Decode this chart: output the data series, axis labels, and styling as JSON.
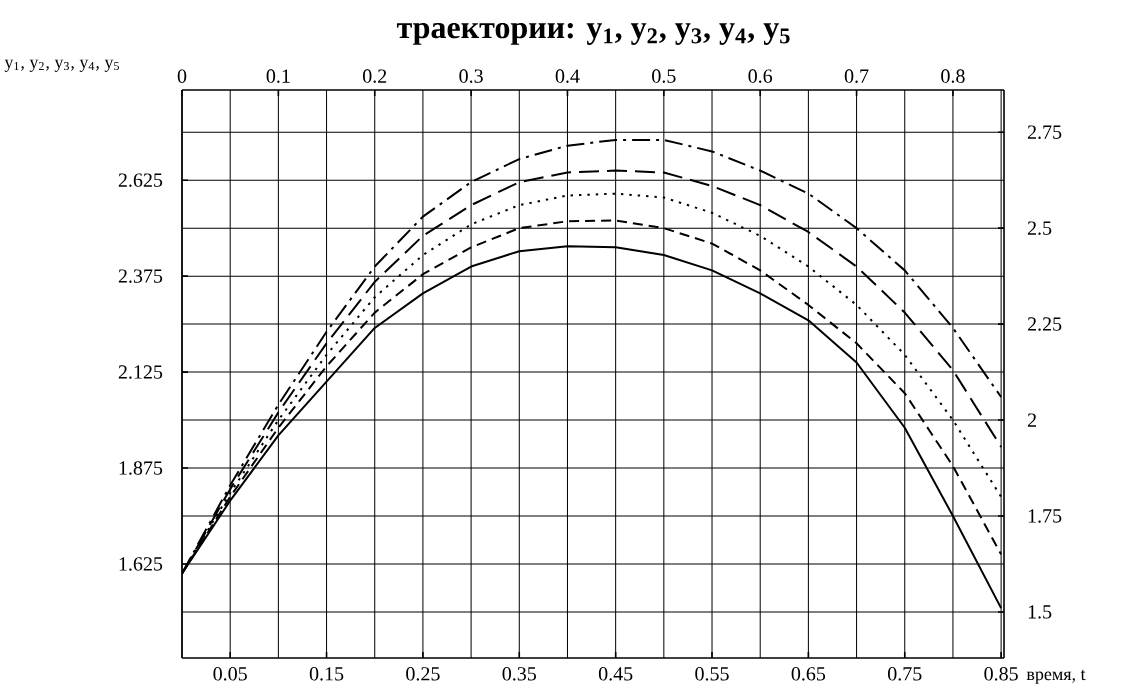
{
  "chart_data": {
    "type": "line",
    "title": "траектории: y$_{1}$, y$_{2}$, y$_{3}$, y$_{4}$, y$_{5}$",
    "ylabel": "y$_{1}$, y$_{2}$, y$_{3}$, y$_{4}$, y$_{5}$",
    "xlabel": "время, t",
    "x": [
      0,
      0.05,
      0.1,
      0.15,
      0.2,
      0.25,
      0.3,
      0.35,
      0.4,
      0.45,
      0.5,
      0.55,
      0.6,
      0.65,
      0.7,
      0.75,
      0.8,
      0.85
    ],
    "series": [
      {
        "color": "#000000",
        "line_style": "solid",
        "values": [
          1.6,
          1.79,
          1.96,
          2.1,
          2.24,
          2.33,
          2.4,
          2.44,
          2.453,
          2.45,
          2.43,
          2.39,
          2.33,
          2.26,
          2.15,
          1.98,
          1.75,
          1.51
        ]
      },
      {
        "color": "#000000",
        "line_style": "dashed",
        "values": [
          1.6,
          1.8,
          1.98,
          2.14,
          2.28,
          2.38,
          2.45,
          2.5,
          2.518,
          2.52,
          2.5,
          2.46,
          2.39,
          2.3,
          2.2,
          2.07,
          1.88,
          1.65
        ]
      },
      {
        "color": "#000000",
        "line_style": "dotted",
        "values": [
          1.6,
          1.81,
          2.0,
          2.17,
          2.32,
          2.43,
          2.51,
          2.56,
          2.585,
          2.59,
          2.58,
          2.54,
          2.48,
          2.4,
          2.3,
          2.17,
          2.0,
          1.8
        ]
      },
      {
        "color": "#000000",
        "line_style": "long dashed",
        "values": [
          1.6,
          1.82,
          2.02,
          2.2,
          2.36,
          2.48,
          2.56,
          2.62,
          2.645,
          2.65,
          2.645,
          2.61,
          2.56,
          2.49,
          2.4,
          2.28,
          2.13,
          1.93
        ]
      },
      {
        "color": "#000000",
        "line_style": "dash dot",
        "values": [
          1.6,
          1.83,
          2.04,
          2.23,
          2.4,
          2.53,
          2.62,
          2.68,
          2.715,
          2.73,
          2.73,
          2.7,
          2.65,
          2.59,
          2.5,
          2.39,
          2.24,
          2.06
        ]
      }
    ],
    "xlim": [
      0,
      0.853
    ],
    "xticks": [
      0.05,
      0.15,
      0.25,
      0.35,
      0.45,
      0.55,
      0.65,
      0.75,
      0.85
    ],
    "x2lim": [
      0,
      0.853
    ],
    "x2ticks": [
      0,
      0.1,
      0.2,
      0.3,
      0.4,
      0.5,
      0.6,
      0.7,
      0.8
    ],
    "ylim": [
      1.38,
      2.86
    ],
    "yticks": [
      1.625,
      1.875,
      2.125,
      2.375,
      2.625
    ],
    "y2lim": [
      1.38,
      2.86
    ],
    "y2ticks": [
      1.5,
      1.75,
      2,
      2.25,
      2.5,
      2.75
    ],
    "grid": true,
    "marker": "none"
  }
}
